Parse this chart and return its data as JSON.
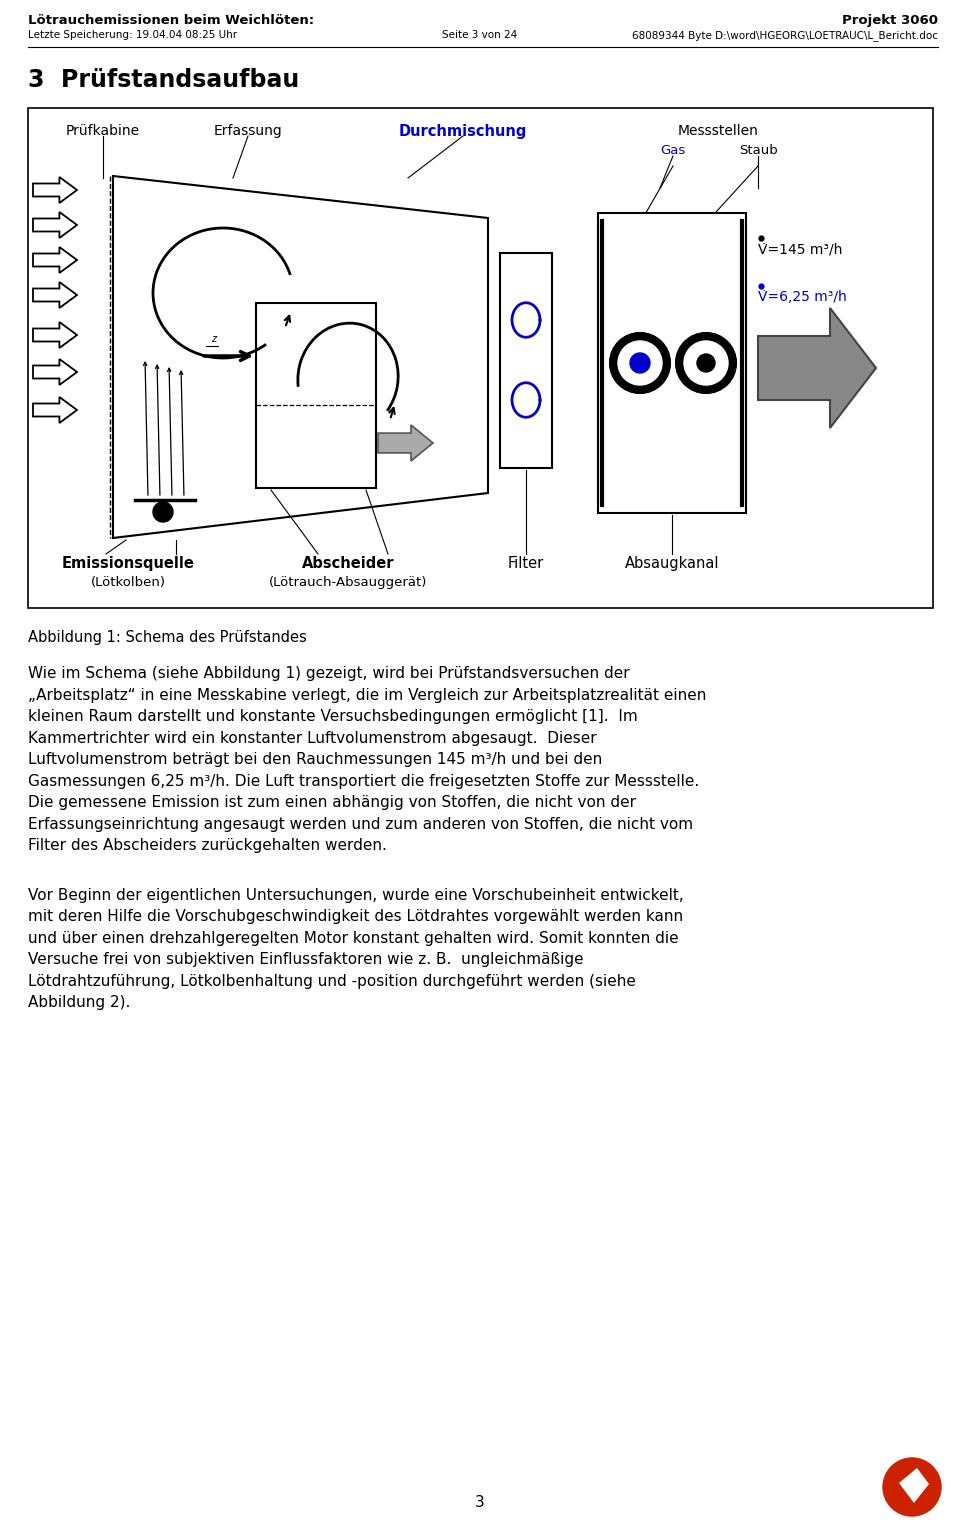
{
  "header_left_bold": "Lötrauchemissionen beim Weichlöten:",
  "header_left_small": "Letzte Speicherung: 19.04.04 08:25 Uhr",
  "header_center_small": "Seite 3 von 24",
  "header_right_bold": "Projekt 3060",
  "header_right_small": "68089344 Byte D:\\word\\HGEORG\\LOETRAUC\\L_Bericht.doc",
  "section_title": "3  Prüfstandsaufbau",
  "fig_caption": "Abbildung 1: Schema des Prüfstandes",
  "body_para1_lines": [
    "Wie im Schema (siehe Abbildung 1) gezeigt, wird bei Prüfstandsversuchen der",
    "„Arbeitsplatz“ in eine Messkabine verlegt, die im Vergleich zur Arbeitsplatzrealität einen",
    "kleinen Raum darstellt und konstante Versuchsbedingungen ermöglicht [1].  Im",
    "Kammertrichter wird ein konstanter Luftvolumenstrom abgesaugt.  Dieser",
    "Luftvolumenstrom beträgt bei den Rauchmessungen 145 m³/h und bei den",
    "Gasmessungen 6,25 m³/h. Die Luft transportiert die freigesetzten Stoffe zur Messstelle.",
    "Die gemessene Emission ist zum einen abhängig von Stoffen, die nicht von der",
    "Erfassungseinrichtung angesaugt werden und zum anderen von Stoffen, die nicht vom",
    "Filter des Abscheiders zurückgehalten werden."
  ],
  "body_para2_lines": [
    "Vor Beginn der eigentlichen Untersuchungen, wurde eine Vorschubeinheit entwickelt,",
    "mit deren Hilfe die Vorschubgeschwindigkeit des Lötdrahtes vorgewählt werden kann",
    "und über einen drehzahlgeregelten Motor konstant gehalten wird. Somit konnten die",
    "Versuche frei von subjektiven Einflussfaktoren wie z. B.  ungleichmäßige",
    "Lötdrahtzuführung, Lötkolbenhaltung und -position durchgeführt werden (siehe",
    "Abbildung 2)."
  ],
  "page_number": "3",
  "blue": "#0000cc",
  "black": "#000000",
  "white": "#ffffff",
  "gray": "#888888",
  "red_logo": "#cc2200"
}
